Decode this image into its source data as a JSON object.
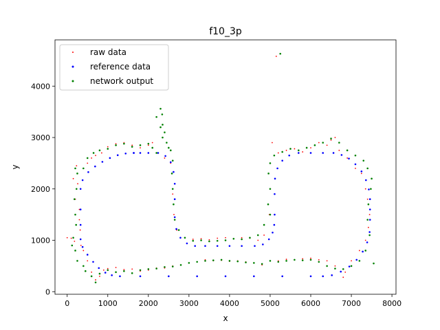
{
  "chart_data": {
    "type": "scatter",
    "title": "f10_3p",
    "xlabel": "x",
    "ylabel": "y",
    "xlim": [
      -300,
      8100
    ],
    "ylim": [
      -50,
      4900
    ],
    "xticks": [
      0,
      1000,
      2000,
      3000,
      4000,
      5000,
      6000,
      7000,
      8000
    ],
    "yticks": [
      0,
      1000,
      2000,
      3000,
      4000
    ],
    "grid": false,
    "legend_position": "top-left",
    "series": [
      {
        "name": "raw data",
        "color": "#ff0000",
        "marker": "dot-small",
        "points": [
          [
            0,
            1050
          ],
          [
            100,
            1040
          ],
          [
            180,
            980
          ],
          [
            230,
            2450
          ],
          [
            260,
            2100
          ],
          [
            300,
            1600
          ],
          [
            320,
            1200
          ],
          [
            340,
            900
          ],
          [
            500,
            2500
          ],
          [
            600,
            2600
          ],
          [
            700,
            2650
          ],
          [
            850,
            2700
          ],
          [
            1000,
            2820
          ],
          [
            1200,
            2880
          ],
          [
            1400,
            2900
          ],
          [
            1600,
            2850
          ],
          [
            1800,
            2800
          ],
          [
            2000,
            2850
          ],
          [
            2100,
            2900
          ],
          [
            2200,
            2700
          ],
          [
            2400,
            2600
          ],
          [
            2550,
            2500
          ],
          [
            2600,
            1900
          ],
          [
            2630,
            1500
          ],
          [
            2700,
            1200
          ],
          [
            2900,
            1050
          ],
          [
            3100,
            1020
          ],
          [
            3300,
            1030
          ],
          [
            3500,
            1010
          ],
          [
            3700,
            1040
          ],
          [
            3900,
            1050
          ],
          [
            4100,
            1030
          ],
          [
            4300,
            1050
          ],
          [
            4500,
            1040
          ],
          [
            4700,
            1000
          ],
          [
            4850,
            1100
          ],
          [
            4980,
            1500
          ],
          [
            5000,
            2000
          ],
          [
            5050,
            2900
          ],
          [
            5150,
            4580
          ],
          [
            5200,
            2700
          ],
          [
            5400,
            2750
          ],
          [
            5600,
            2780
          ],
          [
            5800,
            2720
          ],
          [
            6000,
            2800
          ],
          [
            6200,
            2900
          ],
          [
            6400,
            2850
          ],
          [
            6500,
            2950
          ],
          [
            6600,
            3000
          ],
          [
            6700,
            2750
          ],
          [
            6900,
            2600
          ],
          [
            7100,
            2400
          ],
          [
            7250,
            2300
          ],
          [
            7350,
            2000
          ],
          [
            7400,
            1800
          ],
          [
            7450,
            1500
          ],
          [
            7420,
            1250
          ],
          [
            7350,
            1000
          ],
          [
            7200,
            800
          ],
          [
            7000,
            600
          ],
          [
            6850,
            380
          ],
          [
            6800,
            280
          ],
          [
            6600,
            500
          ],
          [
            6400,
            600
          ],
          [
            6200,
            620
          ],
          [
            6000,
            650
          ],
          [
            5800,
            640
          ],
          [
            5600,
            620
          ],
          [
            5400,
            630
          ],
          [
            5200,
            600
          ],
          [
            5000,
            600
          ],
          [
            4800,
            520
          ],
          [
            4600,
            560
          ],
          [
            4400,
            580
          ],
          [
            4200,
            600
          ],
          [
            4000,
            590
          ],
          [
            3800,
            610
          ],
          [
            3600,
            600
          ],
          [
            3400,
            620
          ],
          [
            3200,
            580
          ],
          [
            3000,
            560
          ],
          [
            2800,
            520
          ],
          [
            2600,
            500
          ],
          [
            2400,
            460
          ],
          [
            2200,
            460
          ],
          [
            2000,
            420
          ],
          [
            1800,
            400
          ],
          [
            1600,
            440
          ],
          [
            1400,
            430
          ],
          [
            1200,
            470
          ],
          [
            1000,
            450
          ],
          [
            900,
            420
          ],
          [
            800,
            300
          ],
          [
            700,
            230
          ],
          [
            600,
            380
          ],
          [
            500,
            600
          ],
          [
            400,
            800
          ],
          [
            300,
            1400
          ],
          [
            200,
            1800
          ],
          [
            150,
            2200
          ]
        ]
      },
      {
        "name": "reference data",
        "color": "#0000ff",
        "marker": "dot",
        "points": [
          [
            1640,
            2700
          ],
          [
            1440,
            2689
          ],
          [
            1245,
            2656
          ],
          [
            1053,
            2601
          ],
          [
            867,
            2527
          ],
          [
            688,
            2437
          ],
          [
            520,
            2327
          ],
          [
            380,
            2170
          ],
          [
            330,
            2000
          ],
          [
            330,
            1600
          ],
          [
            330,
            1300
          ],
          [
            330,
            1020
          ],
          [
            380,
            870
          ],
          [
            500,
            720
          ],
          [
            640,
            580
          ],
          [
            780,
            460
          ],
          [
            940,
            370
          ],
          [
            1100,
            320
          ],
          [
            1300,
            300
          ],
          [
            1800,
            300
          ],
          [
            2500,
            300
          ],
          [
            3200,
            300
          ],
          [
            3900,
            300
          ],
          [
            4600,
            300
          ],
          [
            5300,
            300
          ],
          [
            6000,
            300
          ],
          [
            6300,
            300
          ],
          [
            6520,
            320
          ],
          [
            6740,
            390
          ],
          [
            6950,
            490
          ],
          [
            7130,
            620
          ],
          [
            7280,
            780
          ],
          [
            7390,
            960
          ],
          [
            7450,
            1160
          ],
          [
            7460,
            1400
          ],
          [
            7460,
            1600
          ],
          [
            7460,
            1800
          ],
          [
            7430,
            1990
          ],
          [
            7360,
            2170
          ],
          [
            7250,
            2340
          ],
          [
            7100,
            2480
          ],
          [
            6940,
            2590
          ],
          [
            6760,
            2660
          ],
          [
            6560,
            2700
          ],
          [
            6300,
            2700
          ],
          [
            6000,
            2700
          ],
          [
            5700,
            2700
          ],
          [
            5470,
            2650
          ],
          [
            5300,
            2550
          ],
          [
            5180,
            2400
          ],
          [
            5120,
            2200
          ],
          [
            5110,
            1900
          ],
          [
            5110,
            1500
          ],
          [
            5100,
            1300
          ],
          [
            5060,
            1150
          ],
          [
            4970,
            1020
          ],
          [
            4820,
            920
          ],
          [
            4620,
            890
          ],
          [
            4300,
            890
          ],
          [
            4000,
            890
          ],
          [
            3700,
            890
          ],
          [
            3400,
            890
          ],
          [
            3150,
            890
          ],
          [
            2950,
            940
          ],
          [
            2790,
            1050
          ],
          [
            2690,
            1220
          ],
          [
            2650,
            1450
          ],
          [
            2650,
            1800
          ],
          [
            2650,
            2100
          ],
          [
            2620,
            2330
          ],
          [
            2550,
            2520
          ],
          [
            2420,
            2640
          ],
          [
            2240,
            2700
          ],
          [
            2000,
            2700
          ],
          [
            1800,
            2700
          ],
          [
            1640,
            2700
          ]
        ]
      },
      {
        "name": "network output",
        "color": "#008000",
        "marker": "dot",
        "points": [
          [
            5250,
            4630
          ],
          [
            2300,
            3560
          ],
          [
            2340,
            3450
          ],
          [
            2200,
            3400
          ],
          [
            2350,
            3250
          ],
          [
            2300,
            3200
          ],
          [
            2400,
            3100
          ],
          [
            2350,
            3000
          ],
          [
            2450,
            2900
          ],
          [
            2500,
            2800
          ],
          [
            2550,
            2750
          ],
          [
            2600,
            2550
          ],
          [
            200,
            2400
          ],
          [
            250,
            2300
          ],
          [
            230,
            2000
          ],
          [
            180,
            1800
          ],
          [
            200,
            1500
          ],
          [
            220,
            1300
          ],
          [
            150,
            1050
          ],
          [
            120,
            900
          ],
          [
            200,
            800
          ],
          [
            250,
            600
          ],
          [
            400,
            500
          ],
          [
            450,
            400
          ],
          [
            600,
            300
          ],
          [
            700,
            180
          ],
          [
            800,
            350
          ],
          [
            1000,
            420
          ],
          [
            1200,
            380
          ],
          [
            1400,
            400
          ],
          [
            1600,
            360
          ],
          [
            1800,
            420
          ],
          [
            2000,
            440
          ],
          [
            2200,
            450
          ],
          [
            2400,
            480
          ],
          [
            2600,
            490
          ],
          [
            2800,
            520
          ],
          [
            3000,
            560
          ],
          [
            3200,
            580
          ],
          [
            3400,
            600
          ],
          [
            3600,
            610
          ],
          [
            3800,
            620
          ],
          [
            4000,
            600
          ],
          [
            4200,
            590
          ],
          [
            4400,
            570
          ],
          [
            4600,
            560
          ],
          [
            4800,
            540
          ],
          [
            5000,
            600
          ],
          [
            5200,
            580
          ],
          [
            5400,
            600
          ],
          [
            5600,
            620
          ],
          [
            5800,
            610
          ],
          [
            6000,
            620
          ],
          [
            6200,
            580
          ],
          [
            6400,
            500
          ],
          [
            6600,
            450
          ],
          [
            6800,
            440
          ],
          [
            7000,
            500
          ],
          [
            7200,
            600
          ],
          [
            7350,
            800
          ],
          [
            7550,
            550
          ],
          [
            7450,
            1100
          ],
          [
            7400,
            1400
          ],
          [
            7420,
            1700
          ],
          [
            7480,
            2000
          ],
          [
            7500,
            2200
          ],
          [
            7400,
            2400
          ],
          [
            7300,
            2550
          ],
          [
            7100,
            2650
          ],
          [
            6900,
            2750
          ],
          [
            6700,
            2900
          ],
          [
            6500,
            2980
          ],
          [
            6300,
            2900
          ],
          [
            6100,
            2850
          ],
          [
            5900,
            2800
          ],
          [
            5700,
            2750
          ],
          [
            5500,
            2780
          ],
          [
            5300,
            2720
          ],
          [
            5100,
            2650
          ],
          [
            5000,
            2500
          ],
          [
            4960,
            2300
          ],
          [
            5000,
            2000
          ],
          [
            4950,
            1700
          ],
          [
            5000,
            1500
          ],
          [
            4850,
            1300
          ],
          [
            4700,
            1100
          ],
          [
            4500,
            1050
          ],
          [
            4300,
            1020
          ],
          [
            4100,
            1030
          ],
          [
            3900,
            1000
          ],
          [
            3700,
            990
          ],
          [
            3500,
            980
          ],
          [
            3300,
            1000
          ],
          [
            3100,
            990
          ],
          [
            2900,
            1050
          ],
          [
            2750,
            1200
          ],
          [
            2650,
            1400
          ],
          [
            2620,
            1700
          ],
          [
            2600,
            2000
          ],
          [
            2580,
            2300
          ],
          [
            400,
            2400
          ],
          [
            500,
            2600
          ],
          [
            650,
            2700
          ],
          [
            800,
            2750
          ],
          [
            1000,
            2780
          ],
          [
            1200,
            2850
          ],
          [
            1400,
            2880
          ],
          [
            1600,
            2820
          ],
          [
            1800,
            2850
          ],
          [
            2000,
            2880
          ],
          [
            2100,
            2800
          ],
          [
            2200,
            2700
          ]
        ]
      }
    ]
  }
}
